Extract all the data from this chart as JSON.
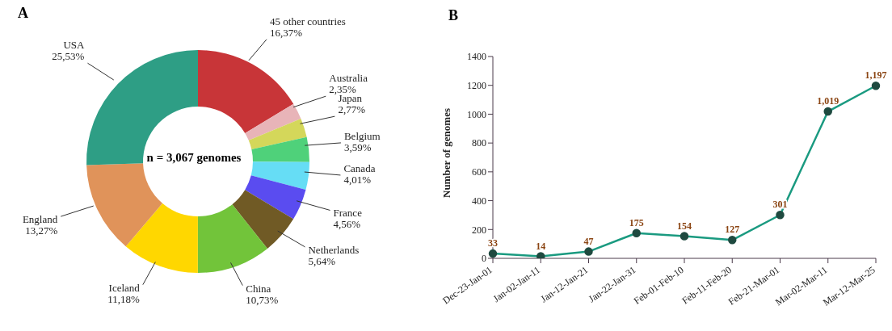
{
  "chart_data": [
    {
      "type": "donut",
      "title": "A",
      "annotations": [
        "n = 3,067 genomes"
      ],
      "categories": [
        "45 other countries",
        "Australia",
        "Japan",
        "Belgium",
        "Canada",
        "France",
        "Netherlands",
        "China",
        "Iceland",
        "England",
        "USA"
      ],
      "values": [
        16.37,
        2.35,
        2.77,
        3.59,
        4.01,
        4.56,
        5.64,
        10.73,
        11.18,
        13.27,
        25.53
      ],
      "value_labels": [
        "16,37%",
        "2,35%",
        "2,77%",
        "3,59%",
        "4,01%",
        "4,56%",
        "5,64%",
        "10,73%",
        "11,18%",
        "13,27%",
        "25,53%"
      ],
      "colors": [
        "#c83538",
        "#e8b4b8",
        "#d4d75a",
        "#4fd17a",
        "#66ddf5",
        "#5a4cf0",
        "#705a25",
        "#72c43a",
        "#ffd700",
        "#e0935a",
        "#2e9e85"
      ],
      "legend": false
    },
    {
      "type": "line",
      "title": "B",
      "ylabel": "Number of genomes",
      "categories": [
        "Dec-23-Jan-01",
        "Jan-02-Jan-11",
        "Jan-12-Jan-21",
        "Jan-22-Jan-31",
        "Feb-01-Feb-10",
        "Feb-11-Feb-20",
        "Feb-21-Mar-01",
        "Mar-02-Mar-11",
        "Mar-12-Mar-25"
      ],
      "series": [
        {
          "color": "#1a9a80",
          "values": [
            33,
            14,
            47,
            175,
            154,
            127,
            301,
            1019,
            1197
          ],
          "value_labels": [
            "33",
            "14",
            "47",
            "175",
            "154",
            "127",
            "301",
            "1,019",
            "1,197"
          ]
        }
      ],
      "ylim": [
        0,
        1400
      ],
      "yticks": [
        0,
        200,
        400,
        600,
        800,
        1000,
        1200,
        1400
      ],
      "marker": "circle",
      "line_style": "solid",
      "grid": false,
      "legend": false
    }
  ]
}
